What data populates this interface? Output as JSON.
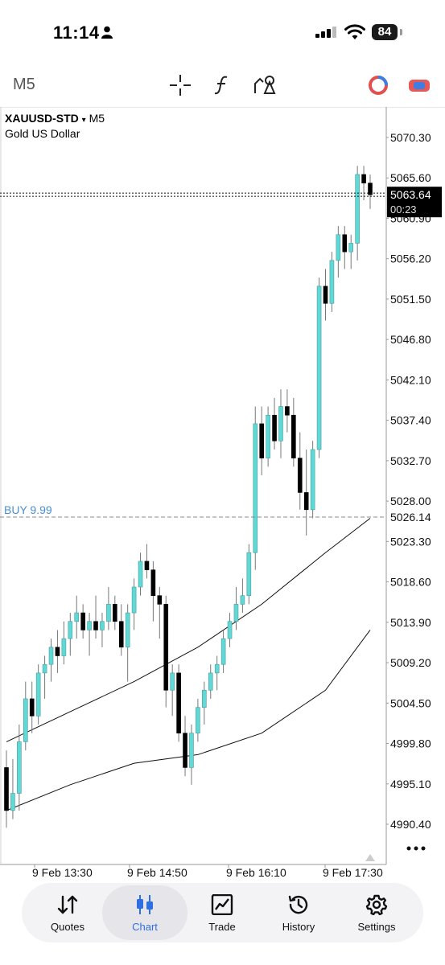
{
  "status_bar": {
    "time": "11:14",
    "battery": "84"
  },
  "toolbar": {
    "timeframe": "M5",
    "icons": [
      "crosshair-icon",
      "indicators-icon",
      "objects-icon",
      "one-click-trading-icon",
      "account-toggle-icon"
    ]
  },
  "chart": {
    "symbol": "XAUUSD-STD",
    "timeframe": "M5",
    "description": "Gold US Dollar",
    "price_labels": [
      "5070.30",
      "5065.60",
      "5060.90",
      "5056.20",
      "5051.50",
      "5046.80",
      "5042.10",
      "5037.40",
      "5032.70",
      "5028.00",
      "5023.30",
      "5018.60",
      "5013.90",
      "5009.20",
      "5004.50",
      "4999.80",
      "4995.10",
      "4990.40"
    ],
    "bid_price": "5063.64",
    "countdown": "00:23",
    "order_line": {
      "label": "BUY 9.99",
      "price": "5026.14"
    },
    "time_labels": [
      "9 Feb 13:30",
      "9 Feb 14:50",
      "9 Feb 16:10",
      "9 Feb 17:30"
    ],
    "colors": {
      "bull": "#5fd8d6",
      "bear": "#000000",
      "order": "#4a8fd4"
    }
  },
  "chart_data": {
    "type": "candlestick",
    "symbol": "XAUUSD-STD",
    "y_range": [
      4988,
      5075
    ],
    "candles": [
      [
        4997,
        4999,
        4990,
        4992
      ],
      [
        4992,
        4998,
        4991,
        4994
      ],
      [
        4994,
        5002,
        4992,
        5000
      ],
      [
        5000,
        5007,
        4999,
        5005
      ],
      [
        5005,
        5007,
        5001,
        5003
      ],
      [
        5003,
        5009,
        5002,
        5008
      ],
      [
        5008,
        5010,
        5005,
        5009
      ],
      [
        5009,
        5012,
        5007,
        5011
      ],
      [
        5011,
        5013,
        5008,
        5010
      ],
      [
        5010,
        5014,
        5009,
        5012
      ],
      [
        5012,
        5015,
        5010,
        5014
      ],
      [
        5014,
        5017,
        5012,
        5015
      ],
      [
        5015,
        5016,
        5012,
        5013
      ],
      [
        5013,
        5015,
        5010,
        5014
      ],
      [
        5014,
        5017,
        5012,
        5013
      ],
      [
        5013,
        5015,
        5011,
        5014
      ],
      [
        5014,
        5018,
        5013,
        5016
      ],
      [
        5016,
        5017,
        5013,
        5014
      ],
      [
        5014,
        5016,
        5010,
        5011
      ],
      [
        5011,
        5016,
        5007,
        5015
      ],
      [
        5015,
        5019,
        5013,
        5018
      ],
      [
        5018,
        5022,
        5017,
        5021
      ],
      [
        5021,
        5023,
        5019,
        5020
      ],
      [
        5020,
        5021,
        5014,
        5017
      ],
      [
        5017,
        5018,
        5012,
        5016
      ],
      [
        5016,
        5017,
        5004,
        5006
      ],
      [
        5006,
        5009,
        5003,
        5008
      ],
      [
        5008,
        5009,
        5000,
        5001
      ],
      [
        5001,
        5003,
        4996,
        4997
      ],
      [
        4997,
        5002,
        4995,
        5001
      ],
      [
        5001,
        5005,
        5000,
        5004
      ],
      [
        5004,
        5007,
        5002,
        5006
      ],
      [
        5006,
        5009,
        5005,
        5008
      ],
      [
        5008,
        5010,
        5006,
        5009
      ],
      [
        5009,
        5013,
        5008,
        5012
      ],
      [
        5012,
        5015,
        5011,
        5014
      ],
      [
        5014,
        5018,
        5013,
        5016
      ],
      [
        5016,
        5019,
        5015,
        5017
      ],
      [
        5017,
        5023,
        5016,
        5022
      ],
      [
        5022,
        5039,
        5020,
        5037
      ],
      [
        5037,
        5039,
        5031,
        5033
      ],
      [
        5033,
        5039,
        5032,
        5038
      ],
      [
        5038,
        5040,
        5034,
        5035
      ],
      [
        5035,
        5041,
        5033,
        5039
      ],
      [
        5039,
        5041,
        5036,
        5038
      ],
      [
        5038,
        5040,
        5032,
        5033
      ],
      [
        5033,
        5036,
        5027,
        5029
      ],
      [
        5029,
        5034,
        5024,
        5027
      ],
      [
        5027,
        5035,
        5026,
        5034
      ],
      [
        5034,
        5054,
        5033,
        5053
      ],
      [
        5053,
        5055,
        5049,
        5051
      ],
      [
        5051,
        5057,
        5050,
        5056
      ],
      [
        5056,
        5060,
        5054,
        5059
      ],
      [
        5059,
        5060,
        5055,
        5057
      ],
      [
        5057,
        5059,
        5055,
        5058
      ],
      [
        5058,
        5067,
        5056,
        5066
      ],
      [
        5066,
        5067,
        5063,
        5065
      ],
      [
        5065,
        5066,
        5062,
        5063.64
      ]
    ],
    "moving_averages": [
      {
        "points": [
          [
            0,
            5000
          ],
          [
            10,
            5003.5
          ],
          [
            20,
            5007
          ],
          [
            30,
            5011
          ],
          [
            40,
            5016
          ],
          [
            50,
            5022
          ],
          [
            57,
            5026
          ]
        ]
      },
      {
        "points": [
          [
            0,
            4992
          ],
          [
            10,
            4995
          ],
          [
            20,
            4997.5
          ],
          [
            30,
            4998.5
          ],
          [
            40,
            5001
          ],
          [
            50,
            5006
          ],
          [
            57,
            5013
          ]
        ]
      }
    ]
  },
  "tabs": [
    {
      "label": "Quotes",
      "icon": "quotes-icon",
      "active": false
    },
    {
      "label": "Chart",
      "icon": "chart-icon",
      "active": true
    },
    {
      "label": "Trade",
      "icon": "trade-icon",
      "active": false
    },
    {
      "label": "History",
      "icon": "history-icon",
      "active": false
    },
    {
      "label": "Settings",
      "icon": "settings-icon",
      "active": false
    }
  ]
}
